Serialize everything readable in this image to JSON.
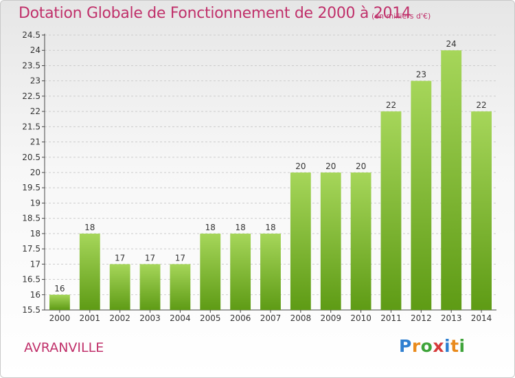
{
  "header": {
    "title": "Dotation Globale de Fonctionnement de 2000 à 2014",
    "unit": "(en milliers d'€)"
  },
  "footer": {
    "commune": "AVRANVILLE",
    "logo": {
      "letters": [
        "P",
        "r",
        "o",
        "x",
        "i",
        "t",
        "i"
      ],
      "colors": [
        "#2f7fd0",
        "#e98a1c",
        "#3fa43a",
        "#d63a3a",
        "#2f7fd0",
        "#e98a1c",
        "#3fa43a"
      ]
    }
  },
  "colors": {
    "bar_top": "#a6d65a",
    "bar_bottom": "#5e9b15",
    "title": "#c0306a",
    "grid": "#cccccc"
  },
  "chart_data": {
    "type": "bar",
    "title": "Dotation Globale de Fonctionnement de 2000 à 2014",
    "subtitle": "(en milliers d'€)",
    "categories": [
      "2000",
      "2001",
      "2002",
      "2003",
      "2004",
      "2005",
      "2006",
      "2007",
      "2008",
      "2009",
      "2010",
      "2011",
      "2012",
      "2013",
      "2014"
    ],
    "values": [
      16,
      18,
      17,
      17,
      17,
      18,
      18,
      18,
      20,
      20,
      20,
      22,
      23,
      24,
      22
    ],
    "ylim": [
      15.5,
      24.5
    ],
    "yticks": [
      15.5,
      16,
      16.5,
      17,
      17.5,
      18,
      18.5,
      19,
      19.5,
      20,
      20.5,
      21,
      21.5,
      22,
      22.5,
      23,
      23.5,
      24,
      24.5
    ],
    "grid": true,
    "legend": "none"
  }
}
